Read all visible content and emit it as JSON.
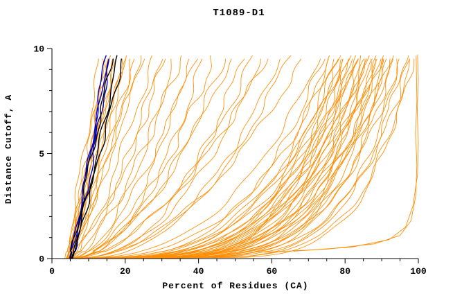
{
  "chart_data": {
    "type": "line",
    "title": "T1089-D1",
    "xlabel": "Percent of Residues (CA)",
    "ylabel": "Distance Cutoff, A",
    "xlim": [
      0,
      100
    ],
    "ylim": [
      0,
      10
    ],
    "x_ticks": [
      0,
      20,
      40,
      60,
      80,
      100
    ],
    "y_ticks": [
      0,
      5,
      10
    ],
    "x_minor_step": 5,
    "y_minor_step": 1,
    "grid": false,
    "legend": "none",
    "curve_format": "each parametric curve is [x_percent_at_bottom, x_percent_at_top, shape_exponent, wiggle_amplitude]; x(y)=x0+(xtop-x0)*(y/10)^p for distance cutoff y in 0..10 A",
    "colors": {
      "model_orange": "#FF8C00",
      "highlight_blue": "#0000BB",
      "highlight_black": "#000000"
    },
    "series_groups": [
      {
        "name": "predicted-models-orange",
        "color": "#FF8C00",
        "width": 0.85,
        "curves": [
          [
            3.5,
            13.5,
            0.95,
            0.5
          ],
          [
            4.0,
            14.5,
            0.85,
            0.6
          ],
          [
            4.4,
            15.5,
            1.05,
            0.5
          ],
          [
            3.8,
            16.5,
            0.8,
            0.7
          ],
          [
            5.0,
            17.5,
            0.95,
            0.5
          ],
          [
            4.2,
            18.5,
            1.1,
            0.6
          ],
          [
            4.8,
            19.5,
            0.82,
            0.5
          ],
          [
            5.4,
            20.5,
            0.92,
            0.6
          ],
          [
            4.0,
            21.5,
            1.0,
            0.5
          ],
          [
            5.0,
            22.5,
            0.78,
            0.7
          ],
          [
            4.5,
            23.5,
            0.9,
            0.5
          ],
          [
            5.8,
            24.5,
            0.86,
            0.6
          ],
          [
            5.2,
            26.0,
            0.95,
            0.5
          ],
          [
            4.6,
            19.0,
            1.2,
            0.5
          ],
          [
            4.3,
            15.0,
            0.7,
            0.8
          ],
          [
            4.0,
            28,
            0.68,
            0.8
          ],
          [
            5.0,
            30,
            0.6,
            0.7
          ],
          [
            4.5,
            32,
            0.72,
            0.8
          ],
          [
            5.4,
            34,
            0.55,
            0.7
          ],
          [
            4.0,
            36,
            0.65,
            0.9
          ],
          [
            6.0,
            38,
            0.5,
            0.7
          ],
          [
            5.0,
            40,
            0.6,
            0.8
          ],
          [
            4.5,
            42,
            0.46,
            0.7
          ],
          [
            5.5,
            45,
            0.55,
            0.9
          ],
          [
            4.0,
            48,
            0.5,
            0.8
          ],
          [
            6.0,
            50,
            0.58,
            0.7
          ],
          [
            5.0,
            53,
            0.42,
            0.8
          ],
          [
            4.5,
            56,
            0.5,
            0.9
          ],
          [
            5.5,
            58,
            0.45,
            0.7
          ],
          [
            4.0,
            60,
            0.54,
            0.8
          ],
          [
            6.0,
            63,
            0.4,
            0.7
          ],
          [
            5.0,
            66,
            0.46,
            0.8
          ],
          [
            5.5,
            70,
            0.5,
            0.7
          ],
          [
            3.5,
            74,
            0.36,
            0.6
          ],
          [
            4.2,
            75,
            0.3,
            0.7
          ],
          [
            5.0,
            76,
            0.26,
            0.6
          ],
          [
            5.8,
            77,
            0.22,
            0.7
          ],
          [
            6.4,
            78,
            0.18,
            0.6
          ],
          [
            3.8,
            78.5,
            0.34,
            0.7
          ],
          [
            4.6,
            79,
            0.28,
            0.6
          ],
          [
            5.4,
            80,
            0.24,
            0.7
          ],
          [
            6.2,
            80.5,
            0.2,
            0.6
          ],
          [
            4.0,
            81,
            0.32,
            0.7
          ],
          [
            4.8,
            81.5,
            0.26,
            0.6
          ],
          [
            5.6,
            82,
            0.22,
            0.7
          ],
          [
            6.0,
            82.5,
            0.18,
            0.6
          ],
          [
            3.6,
            83,
            0.3,
            0.7
          ],
          [
            4.4,
            83.5,
            0.25,
            0.6
          ],
          [
            5.2,
            84,
            0.21,
            0.7
          ],
          [
            6.3,
            84.5,
            0.17,
            0.6
          ],
          [
            3.9,
            85,
            0.29,
            0.7
          ],
          [
            4.7,
            85.5,
            0.24,
            0.6
          ],
          [
            5.5,
            86,
            0.2,
            0.7
          ],
          [
            6.1,
            86.5,
            0.16,
            0.6
          ],
          [
            4.1,
            87,
            0.28,
            0.7
          ],
          [
            4.9,
            87.5,
            0.23,
            0.6
          ],
          [
            5.7,
            88,
            0.19,
            0.7
          ],
          [
            6.5,
            88.5,
            0.15,
            0.6
          ],
          [
            4.3,
            89,
            0.27,
            0.7
          ],
          [
            5.1,
            89.5,
            0.22,
            0.6
          ],
          [
            5.9,
            90,
            0.18,
            0.7
          ],
          [
            3.7,
            90.5,
            0.26,
            0.6
          ],
          [
            4.5,
            91,
            0.21,
            0.7
          ],
          [
            5.3,
            91.5,
            0.17,
            0.6
          ],
          [
            6.0,
            92,
            0.24,
            0.7
          ],
          [
            4.2,
            92.5,
            0.2,
            0.6
          ],
          [
            5.0,
            93,
            0.16,
            0.7
          ],
          [
            5.8,
            93.5,
            0.22,
            0.6
          ],
          [
            4.4,
            94,
            0.18,
            0.7
          ],
          [
            5.2,
            95,
            0.14,
            0.6
          ],
          [
            6.2,
            96,
            0.2,
            0.7
          ],
          [
            4.6,
            97,
            0.16,
            0.6
          ],
          [
            5.4,
            98,
            0.13,
            0.7
          ],
          [
            4.8,
            99,
            0.18,
            0.6
          ],
          [
            5.6,
            99.5,
            0.15,
            0.5
          ]
        ]
      },
      {
        "name": "highlight-models-blue",
        "color": "#0000BB",
        "width": 1.4,
        "curves": [
          [
            5.0,
            15.0,
            0.9,
            0.4
          ],
          [
            5.4,
            16.2,
            0.85,
            0.4
          ],
          [
            4.8,
            15.8,
            0.95,
            0.3
          ]
        ]
      },
      {
        "name": "highlight-models-black",
        "color": "#000000",
        "width": 1.4,
        "curves": [
          [
            5.0,
            17.0,
            1.0,
            0.45
          ],
          [
            5.3,
            18.5,
            0.9,
            0.4
          ],
          [
            5.6,
            20.0,
            0.95,
            0.4
          ]
        ]
      }
    ],
    "explicit_curves": [
      {
        "color": "#FF8C00",
        "width": 0.85,
        "points": [
          [
            58,
            0.3
          ],
          [
            75,
            0.45
          ],
          [
            88,
            0.7
          ],
          [
            95,
            1.1
          ],
          [
            98,
            1.8
          ],
          [
            99.3,
            3.0
          ],
          [
            99.6,
            4.5
          ],
          [
            99.2,
            6.0
          ],
          [
            99.6,
            7.5
          ],
          [
            99.4,
            9.65
          ]
        ]
      },
      {
        "color": "#FF8C00",
        "width": 0.85,
        "points": [
          [
            66,
            0.35
          ],
          [
            82,
            0.55
          ],
          [
            92,
            0.9
          ],
          [
            96.5,
            1.5
          ],
          [
            98.5,
            2.5
          ],
          [
            99.8,
            4.0
          ],
          [
            100,
            5.5
          ],
          [
            99.7,
            7.0
          ],
          [
            100,
            8.5
          ],
          [
            99.8,
            9.7
          ]
        ]
      }
    ]
  }
}
